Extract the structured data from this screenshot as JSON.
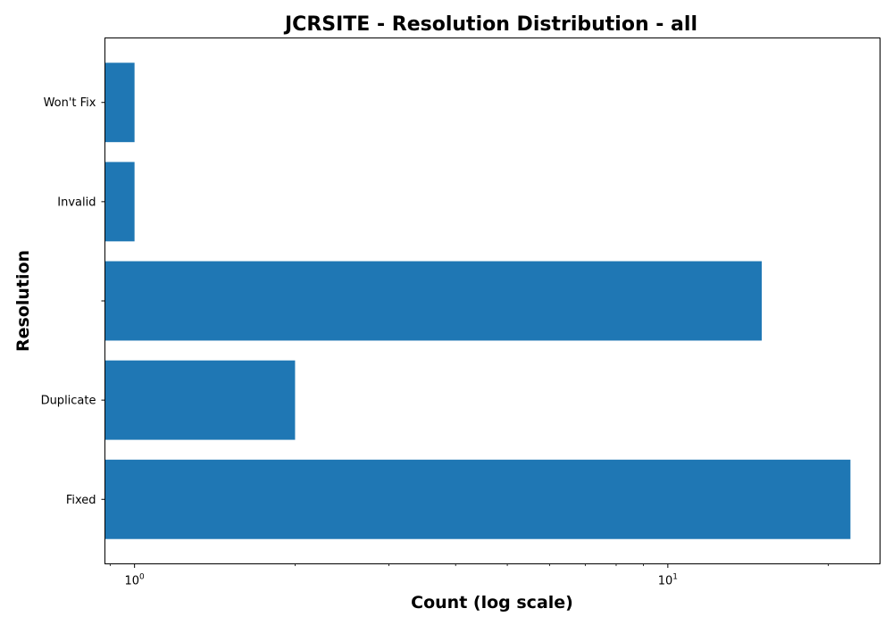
{
  "chart_data": {
    "type": "bar",
    "orientation": "horizontal",
    "title": "JCRSITE - Resolution Distribution - all",
    "xlabel": "Count (log scale)",
    "ylabel": "Resolution",
    "x_scale": "log",
    "xlim": [
      0.88,
      25
    ],
    "x_ticks": [
      {
        "value": 1,
        "base": "10",
        "exp": "0"
      },
      {
        "value": 10,
        "base": "10",
        "exp": "1"
      }
    ],
    "categories": [
      "Fixed",
      "Duplicate",
      "",
      "Invalid",
      "Won't Fix"
    ],
    "values": [
      22,
      2,
      15,
      1,
      1
    ],
    "bar_color": "#1f77b4",
    "grid": false,
    "legend": false
  }
}
